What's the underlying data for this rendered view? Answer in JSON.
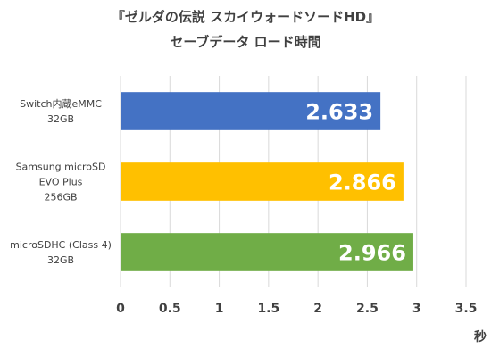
{
  "chart_data": {
    "type": "bar",
    "orientation": "horizontal",
    "title": "『ゼルダの伝説 スカイウォードソードHD』",
    "subtitle": "セーブデータ ロード時間",
    "categories": [
      [
        "Switch内蔵eMMC",
        "32GB"
      ],
      [
        "Samsung microSD",
        "EVO Plus",
        "256GB"
      ],
      [
        "microSDHC (Class 4)",
        "32GB"
      ]
    ],
    "values": [
      2.633,
      2.866,
      2.966
    ],
    "data_labels": [
      "2.633",
      "2.866",
      "2.966"
    ],
    "colors": [
      "#4472C4",
      "#FFC000",
      "#70AD47"
    ],
    "xlabel": "秒",
    "xlim": [
      0,
      3.5
    ],
    "xticks": [
      "0",
      "0.5",
      "1",
      "1.5",
      "2",
      "2.5",
      "3",
      "3.5"
    ],
    "grid": true
  }
}
